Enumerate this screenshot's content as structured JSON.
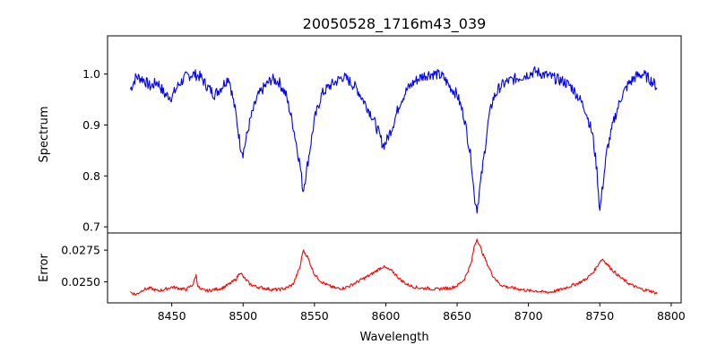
{
  "title": "20050528_1716m43_039",
  "chart_data": [
    {
      "type": "line",
      "panel": "top",
      "ylabel": "Spectrum",
      "xlim": [
        8405,
        8807
      ],
      "ylim": [
        0.688,
        1.075
      ],
      "x_ticks": [
        8450,
        8500,
        8550,
        8600,
        8650,
        8700,
        8750,
        8800
      ],
      "y_ticks": [
        0.7,
        0.8,
        0.9,
        1.0
      ],
      "y_tick_labels": [
        "0.7",
        "0.8",
        "0.9",
        "1.0"
      ],
      "grid": false,
      "series": [
        {
          "color": "#0000ff",
          "x": [
            8421,
            8425,
            8430,
            8435,
            8440,
            8445,
            8450,
            8455,
            8460,
            8465,
            8470,
            8475,
            8480,
            8485,
            8490,
            8495,
            8498,
            8500,
            8505,
            8510,
            8515,
            8520,
            8525,
            8530,
            8535,
            8540,
            8542,
            8545,
            8550,
            8555,
            8560,
            8565,
            8570,
            8575,
            8580,
            8585,
            8590,
            8595,
            8598,
            8600,
            8605,
            8610,
            8615,
            8620,
            8625,
            8630,
            8635,
            8640,
            8645,
            8650,
            8655,
            8660,
            8662,
            8664,
            8668,
            8672,
            8675,
            8680,
            8685,
            8690,
            8695,
            8700,
            8705,
            8710,
            8715,
            8720,
            8725,
            8730,
            8735,
            8740,
            8745,
            8748,
            8750,
            8752,
            8755,
            8760,
            8765,
            8770,
            8775,
            8780,
            8785,
            8790
          ],
          "values": [
            0.97,
            0.995,
            0.99,
            0.975,
            0.985,
            0.96,
            0.955,
            0.98,
            0.995,
            1.0,
            0.995,
            0.975,
            0.96,
            0.975,
            0.995,
            0.92,
            0.86,
            0.845,
            0.91,
            0.955,
            0.975,
            0.99,
            0.985,
            0.96,
            0.9,
            0.82,
            0.77,
            0.82,
            0.91,
            0.96,
            0.975,
            0.985,
            0.995,
            0.985,
            0.97,
            0.945,
            0.92,
            0.885,
            0.86,
            0.865,
            0.9,
            0.945,
            0.97,
            0.985,
            0.995,
            1.0,
            1.0,
            0.995,
            0.975,
            0.96,
            0.915,
            0.83,
            0.76,
            0.735,
            0.82,
            0.91,
            0.95,
            0.975,
            0.985,
            0.99,
            0.995,
            1.0,
            1.005,
            1.0,
            0.995,
            0.99,
            0.985,
            0.975,
            0.955,
            0.93,
            0.88,
            0.81,
            0.73,
            0.78,
            0.85,
            0.91,
            0.955,
            0.98,
            0.995,
            1.0,
            0.99,
            0.975
          ]
        }
      ]
    },
    {
      "type": "line",
      "panel": "bottom",
      "ylabel": "Error",
      "xlabel": "Wavelength",
      "xlim": [
        8405,
        8807
      ],
      "ylim": [
        0.02335,
        0.02885
      ],
      "x_ticks": [
        8450,
        8500,
        8550,
        8600,
        8650,
        8700,
        8750,
        8800
      ],
      "x_tick_labels": [
        "8450",
        "8500",
        "8550",
        "8600",
        "8650",
        "8700",
        "8750",
        "8800"
      ],
      "y_ticks": [
        0.025,
        0.0275
      ],
      "y_tick_labels": [
        "0.0250",
        "0.0275"
      ],
      "grid": false,
      "series": [
        {
          "color": "#ff0000",
          "x": [
            8421,
            8425,
            8430,
            8435,
            8440,
            8445,
            8450,
            8455,
            8460,
            8465,
            8467,
            8468,
            8470,
            8475,
            8480,
            8485,
            8490,
            8495,
            8498,
            8500,
            8505,
            8510,
            8515,
            8520,
            8525,
            8530,
            8535,
            8540,
            8542,
            8545,
            8550,
            8555,
            8560,
            8565,
            8570,
            8575,
            8580,
            8585,
            8590,
            8595,
            8598,
            8600,
            8605,
            8610,
            8615,
            8620,
            8625,
            8630,
            8635,
            8640,
            8645,
            8650,
            8655,
            8660,
            8662,
            8664,
            8668,
            8672,
            8675,
            8680,
            8685,
            8690,
            8695,
            8700,
            8705,
            8710,
            8715,
            8720,
            8725,
            8730,
            8735,
            8740,
            8745,
            8748,
            8750,
            8752,
            8755,
            8760,
            8765,
            8770,
            8775,
            8780,
            8785,
            8790
          ],
          "values": [
            0.0242,
            0.024,
            0.0244,
            0.0245,
            0.0243,
            0.0244,
            0.0246,
            0.0245,
            0.0244,
            0.0248,
            0.0256,
            0.0248,
            0.0244,
            0.0243,
            0.0244,
            0.0245,
            0.0248,
            0.0252,
            0.0258,
            0.0254,
            0.0248,
            0.0246,
            0.0245,
            0.0244,
            0.0244,
            0.0245,
            0.0248,
            0.0262,
            0.0275,
            0.027,
            0.0256,
            0.025,
            0.0247,
            0.0245,
            0.0245,
            0.0247,
            0.025,
            0.0253,
            0.0256,
            0.026,
            0.0262,
            0.0261,
            0.0258,
            0.0252,
            0.0248,
            0.0246,
            0.0245,
            0.0245,
            0.0244,
            0.0245,
            0.0245,
            0.0247,
            0.0252,
            0.0265,
            0.0278,
            0.0284,
            0.0272,
            0.0262,
            0.0255,
            0.0248,
            0.0246,
            0.0245,
            0.0244,
            0.0243,
            0.0243,
            0.0242,
            0.0242,
            0.0243,
            0.0245,
            0.0247,
            0.0249,
            0.0252,
            0.0257,
            0.0262,
            0.0266,
            0.0268,
            0.0264,
            0.0258,
            0.0253,
            0.0249,
            0.0246,
            0.0244,
            0.0243,
            0.0241
          ]
        }
      ]
    }
  ]
}
